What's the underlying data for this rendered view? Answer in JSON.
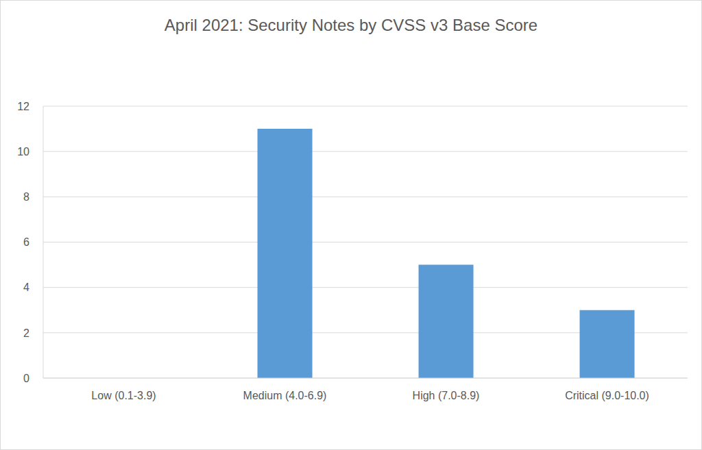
{
  "chart_data": {
    "type": "bar",
    "title": "April 2021: Security Notes by CVSS v3 Base Score",
    "categories": [
      "Low (0.1-3.9)",
      "Medium (4.0-6.9)",
      "High (7.0-8.9)",
      "Critical (9.0-10.0)"
    ],
    "values": [
      0,
      11,
      5,
      3
    ],
    "color": "#5b9bd5",
    "ylim": [
      0,
      12
    ],
    "yticks": [
      0,
      2,
      4,
      6,
      8,
      10,
      12
    ],
    "grid": true
  }
}
